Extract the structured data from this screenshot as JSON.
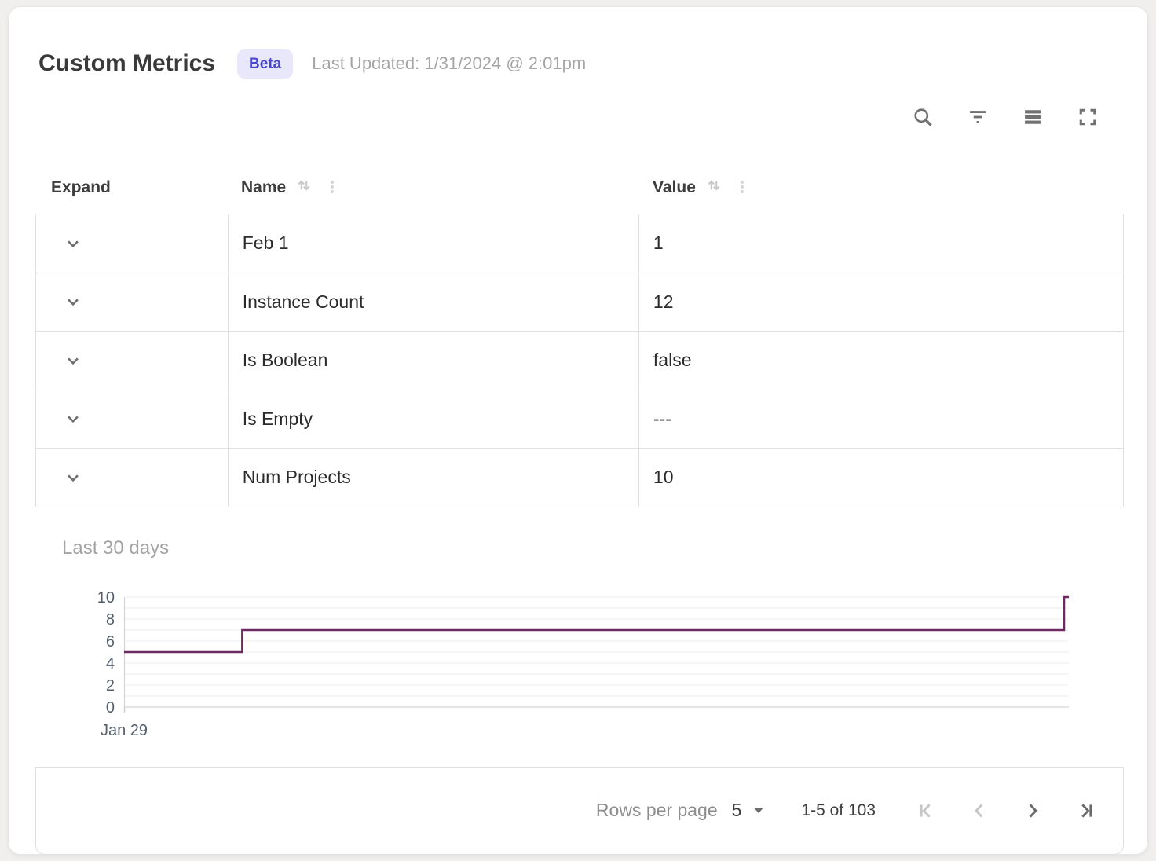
{
  "header": {
    "title": "Custom Metrics",
    "badge": "Beta",
    "last_updated": "Last Updated: 1/31/2024 @ 2:01pm"
  },
  "toolbar": {
    "icons": [
      {
        "name": "search-icon"
      },
      {
        "name": "filter-icon"
      },
      {
        "name": "density-icon"
      },
      {
        "name": "fullscreen-icon"
      }
    ]
  },
  "table": {
    "columns": [
      {
        "label": "Expand"
      },
      {
        "label": "Name",
        "sortable": true
      },
      {
        "label": "Value",
        "sortable": true
      }
    ],
    "rows": [
      {
        "name": "Feb 1",
        "value": "1",
        "expanded": false
      },
      {
        "name": "Instance Count",
        "value": "12",
        "expanded": false
      },
      {
        "name": "Is Boolean",
        "value": "false",
        "expanded": false
      },
      {
        "name": "Is Empty",
        "value": "---",
        "expanded": false
      },
      {
        "name": "Num Projects",
        "value": "10",
        "expanded": true
      }
    ]
  },
  "chart_data": {
    "type": "line",
    "variant": "step",
    "title": "Last 30 days",
    "xlabel": "",
    "ylabel": "",
    "xlim": [
      0,
      30
    ],
    "ylim": [
      0,
      10
    ],
    "y_ticks": [
      0,
      2,
      4,
      6,
      8,
      10
    ],
    "grid_step": 1,
    "x_tick_labels": [
      {
        "x": 0,
        "label": "Jan 29"
      }
    ],
    "series": [
      {
        "name": "Num Projects",
        "color": "#6e2b63",
        "points": [
          [
            0,
            5
          ],
          [
            3.75,
            5
          ],
          [
            3.75,
            7
          ],
          [
            29.85,
            7
          ],
          [
            29.85,
            10
          ],
          [
            30,
            10
          ]
        ]
      }
    ]
  },
  "footer": {
    "rows_per_page_label": "Rows per page",
    "rows_per_page_value": "5",
    "range_label": "1-5 of 103"
  },
  "colors": {
    "accent_line": "#6e2b63",
    "badge_bg": "#e9e8fb",
    "badge_text": "#4a49c9",
    "grid_border": "#e0e0e0",
    "gridline": "#eeeeee",
    "gridline_zero": "#dcdcdc",
    "axis_line": "#d4d4d4",
    "axis_text": "#55606e",
    "icon_gray": "#717171",
    "disabled_icon": "#c6c6c6"
  }
}
